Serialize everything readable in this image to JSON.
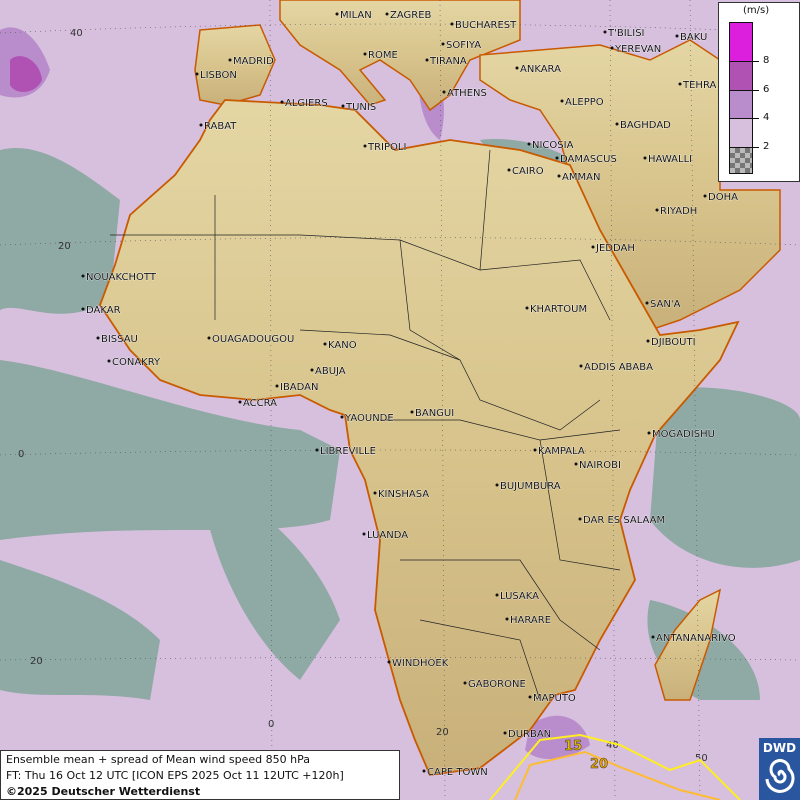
{
  "map": {
    "grid_labels_lat": [
      "40",
      "20",
      "0",
      "20"
    ],
    "grid_labels_lon": [
      "0",
      "20",
      "40",
      "50"
    ],
    "contour_labels": [
      "15",
      "20"
    ],
    "cities": [
      {
        "name": "MILAN"
      },
      {
        "name": "ZAGREB"
      },
      {
        "name": "BUCHAREST"
      },
      {
        "name": "ROME"
      },
      {
        "name": "SOFIYA"
      },
      {
        "name": "TIRANA"
      },
      {
        "name": "ATHENS"
      },
      {
        "name": "ANKARA"
      },
      {
        "name": "T'BILISI"
      },
      {
        "name": "YEREVAN"
      },
      {
        "name": "BAKU"
      },
      {
        "name": "TEHRA"
      },
      {
        "name": "LISBON"
      },
      {
        "name": "MADRID"
      },
      {
        "name": "ALGIERS"
      },
      {
        "name": "TUNIS"
      },
      {
        "name": "RABAT"
      },
      {
        "name": "TRIPOLI"
      },
      {
        "name": "ALEPPO"
      },
      {
        "name": "NICOSIA"
      },
      {
        "name": "DAMASCUS"
      },
      {
        "name": "BAGHDAD"
      },
      {
        "name": "AMMAN"
      },
      {
        "name": "CAIRO"
      },
      {
        "name": "HAWALLI"
      },
      {
        "name": "DOHA"
      },
      {
        "name": "RIYADH"
      },
      {
        "name": "JEDDAH"
      },
      {
        "name": "NOUAKCHOTT"
      },
      {
        "name": "DAKAR"
      },
      {
        "name": "BISSAU"
      },
      {
        "name": "CONAKRY"
      },
      {
        "name": "OUAGADOUGOU"
      },
      {
        "name": "KANO"
      },
      {
        "name": "KHARTOUM"
      },
      {
        "name": "SAN'A"
      },
      {
        "name": "DJIBOUTI"
      },
      {
        "name": "ABUJA"
      },
      {
        "name": "IBADAN"
      },
      {
        "name": "ACCRA"
      },
      {
        "name": "ADDIS ABABA"
      },
      {
        "name": "YAOUNDE"
      },
      {
        "name": "BANGUI"
      },
      {
        "name": "MOGADISHU"
      },
      {
        "name": "LIBREVILLE"
      },
      {
        "name": "KAMPALA"
      },
      {
        "name": "NAIROBI"
      },
      {
        "name": "KINSHASA"
      },
      {
        "name": "BUJUMBURA"
      },
      {
        "name": "DAR ES SALAAM"
      },
      {
        "name": "LUANDA"
      },
      {
        "name": "LUSAKA"
      },
      {
        "name": "HARARE"
      },
      {
        "name": "ANTANANARIVO"
      },
      {
        "name": "WINDHOEK"
      },
      {
        "name": "GABORONE"
      },
      {
        "name": "MAPUTO"
      },
      {
        "name": "DURBAN"
      },
      {
        "name": "CAPE TOWN"
      }
    ],
    "colors": {
      "sea": "#8fa9a4",
      "spread_2_4": "#d6c0de",
      "spread_4_6": "#b98ccb",
      "spread_6_8": "#b052b4",
      "spread_8plus": "#dc1fdc",
      "land": "#d9c48f",
      "contour_15": "#ffee22",
      "contour_20": "#ffbb33"
    }
  },
  "legend": {
    "unit": "(m/s)",
    "ticks": [
      "8",
      "6",
      "4",
      "2"
    ]
  },
  "caption": {
    "line1": "Ensemble mean + spread of Mean wind speed 850 hPa",
    "line2": "FT: Thu 16 Oct 12 UTC [ICON EPS 2025 Oct 11 12UTC +120h]",
    "line3": "©2025 Deutscher Wetterdienst"
  },
  "logo": {
    "text": "DWD"
  }
}
